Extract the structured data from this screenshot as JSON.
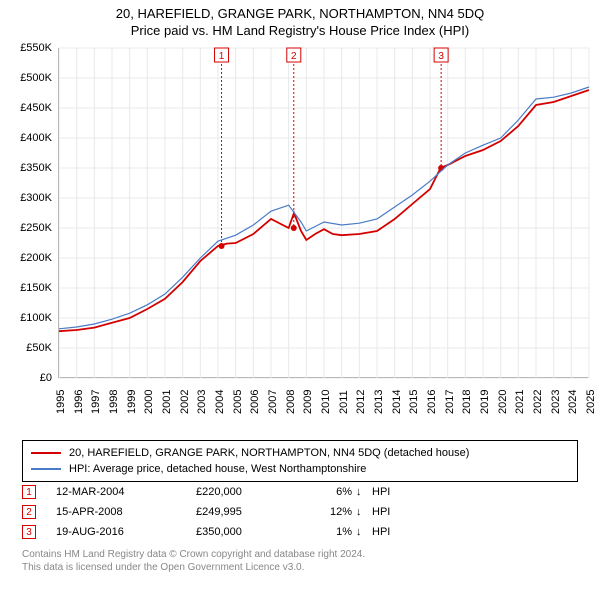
{
  "title_line1": "20, HAREFIELD, GRANGE PARK, NORTHAMPTON, NN4 5DQ",
  "title_line2": "Price paid vs. HM Land Registry's House Price Index (HPI)",
  "chart": {
    "type": "line",
    "ylim": [
      0,
      550000
    ],
    "ytick_step": 50000,
    "yticks": [
      "£0",
      "£50K",
      "£100K",
      "£150K",
      "£200K",
      "£250K",
      "£300K",
      "£350K",
      "£400K",
      "£450K",
      "£500K",
      "£550K"
    ],
    "xlim": [
      1995,
      2025
    ],
    "xticks": [
      "1995",
      "1996",
      "1997",
      "1998",
      "1999",
      "2000",
      "2001",
      "2002",
      "2003",
      "2004",
      "2005",
      "2006",
      "2007",
      "2008",
      "2009",
      "2010",
      "2011",
      "2012",
      "2013",
      "2014",
      "2015",
      "2016",
      "2017",
      "2018",
      "2019",
      "2020",
      "2021",
      "2022",
      "2023",
      "2024",
      "2025"
    ],
    "grid_color": "#e8e8e8",
    "background_color": "#ffffff",
    "axis_color": "#888888",
    "series": [
      {
        "name": "property",
        "label": "20, HAREFIELD, GRANGE PARK, NORTHAMPTON, NN4 5DQ (detached house)",
        "color": "#d40000",
        "width": 1.8,
        "data": [
          [
            1995,
            78
          ],
          [
            1996,
            80
          ],
          [
            1997,
            84
          ],
          [
            1998,
            92
          ],
          [
            1999,
            100
          ],
          [
            2000,
            115
          ],
          [
            2001,
            132
          ],
          [
            2002,
            160
          ],
          [
            2003,
            195
          ],
          [
            2004,
            220
          ],
          [
            2004.5,
            224
          ],
          [
            2005,
            225
          ],
          [
            2006,
            240
          ],
          [
            2007,
            265
          ],
          [
            2008,
            250
          ],
          [
            2008.3,
            275
          ],
          [
            2008.7,
            245
          ],
          [
            2009,
            230
          ],
          [
            2009.5,
            240
          ],
          [
            2010,
            248
          ],
          [
            2010.5,
            240
          ],
          [
            2011,
            238
          ],
          [
            2012,
            240
          ],
          [
            2013,
            245
          ],
          [
            2014,
            265
          ],
          [
            2015,
            290
          ],
          [
            2016,
            315
          ],
          [
            2016.6,
            350
          ],
          [
            2017,
            355
          ],
          [
            2018,
            370
          ],
          [
            2019,
            380
          ],
          [
            2020,
            395
          ],
          [
            2021,
            420
          ],
          [
            2022,
            455
          ],
          [
            2023,
            460
          ],
          [
            2024,
            470
          ],
          [
            2025,
            480
          ]
        ]
      },
      {
        "name": "hpi",
        "label": "HPI: Average price, detached house, West Northamptonshire",
        "color": "#4a7bc8",
        "width": 1.2,
        "data": [
          [
            1995,
            82
          ],
          [
            1996,
            85
          ],
          [
            1997,
            90
          ],
          [
            1998,
            98
          ],
          [
            1999,
            108
          ],
          [
            2000,
            122
          ],
          [
            2001,
            140
          ],
          [
            2002,
            168
          ],
          [
            2003,
            200
          ],
          [
            2004,
            228
          ],
          [
            2005,
            238
          ],
          [
            2006,
            255
          ],
          [
            2007,
            278
          ],
          [
            2008,
            288
          ],
          [
            2008.7,
            260
          ],
          [
            2009,
            245
          ],
          [
            2010,
            260
          ],
          [
            2011,
            255
          ],
          [
            2012,
            258
          ],
          [
            2013,
            265
          ],
          [
            2014,
            285
          ],
          [
            2015,
            305
          ],
          [
            2016,
            328
          ],
          [
            2017,
            355
          ],
          [
            2018,
            375
          ],
          [
            2019,
            388
          ],
          [
            2020,
            400
          ],
          [
            2021,
            430
          ],
          [
            2022,
            465
          ],
          [
            2023,
            468
          ],
          [
            2024,
            475
          ],
          [
            2025,
            485
          ]
        ]
      }
    ],
    "markers": [
      {
        "n": "1",
        "x": 2004.2,
        "y_top": 0,
        "dash_color": "#d40000",
        "point_y": 220
      },
      {
        "n": "2",
        "x": 2008.29,
        "y_top": 0,
        "dash_color": "#d40000",
        "point_y": 250
      },
      {
        "n": "3",
        "x": 2016.63,
        "y_top": 0,
        "dash_color": "#d40000",
        "point_y": 350
      }
    ]
  },
  "legend": {
    "items": [
      {
        "color": "#d40000",
        "label": "20, HAREFIELD, GRANGE PARK, NORTHAMPTON, NN4 5DQ (detached house)"
      },
      {
        "color": "#4a7bc8",
        "label": "HPI: Average price, detached house, West Northamptonshire"
      }
    ]
  },
  "sales": [
    {
      "n": "1",
      "date": "12-MAR-2004",
      "price": "£220,000",
      "pct": "6%",
      "arrow": "↓",
      "hpi": "HPI"
    },
    {
      "n": "2",
      "date": "15-APR-2008",
      "price": "£249,995",
      "pct": "12%",
      "arrow": "↓",
      "hpi": "HPI"
    },
    {
      "n": "3",
      "date": "19-AUG-2016",
      "price": "£350,000",
      "pct": "1%",
      "arrow": "↓",
      "hpi": "HPI"
    }
  ],
  "footer_line1": "Contains HM Land Registry data © Crown copyright and database right 2024.",
  "footer_line2": "This data is licensed under the Open Government Licence v3.0."
}
